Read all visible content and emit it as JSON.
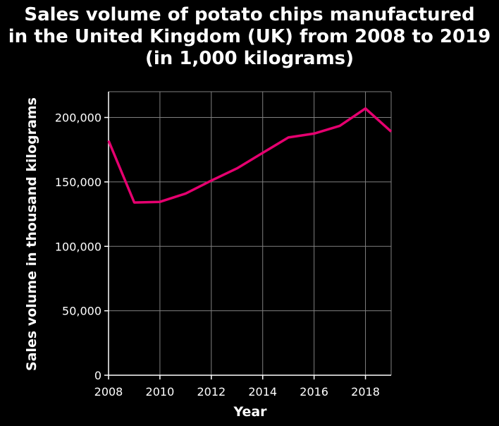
{
  "chart_data": {
    "type": "line",
    "title": [
      "Sales volume of potato chips manufactured",
      "in the United Kingdom (UK) from 2008 to 2019",
      "(in 1,000 kilograms)"
    ],
    "xlabel": "Year",
    "ylabel": "Sales volume in thousand kilograms",
    "x": [
      2008,
      2009,
      2010,
      2011,
      2012,
      2013,
      2014,
      2015,
      2016,
      2017,
      2018,
      2019
    ],
    "series": [
      {
        "values": [
          182000,
          134000,
          134500,
          141000,
          151000,
          160500,
          172500,
          184500,
          187500,
          193500,
          207000,
          189000
        ]
      }
    ],
    "xticks": [
      2008,
      2010,
      2012,
      2014,
      2016,
      2018
    ],
    "xtick_labels": [
      "2008",
      "2010",
      "2012",
      "2014",
      "2016",
      "2018"
    ],
    "yticks": [
      0,
      50000,
      100000,
      150000,
      200000
    ],
    "ytick_labels": [
      "0",
      "50,000",
      "100,000",
      "150,000",
      "200,000"
    ],
    "xlim": [
      2008,
      2019
    ],
    "ylim": [
      0,
      220000
    ],
    "grid": true,
    "line_color": "#e5006f",
    "background": "#000000",
    "axis_color": "#ffffff",
    "grid_color": "#808080"
  }
}
